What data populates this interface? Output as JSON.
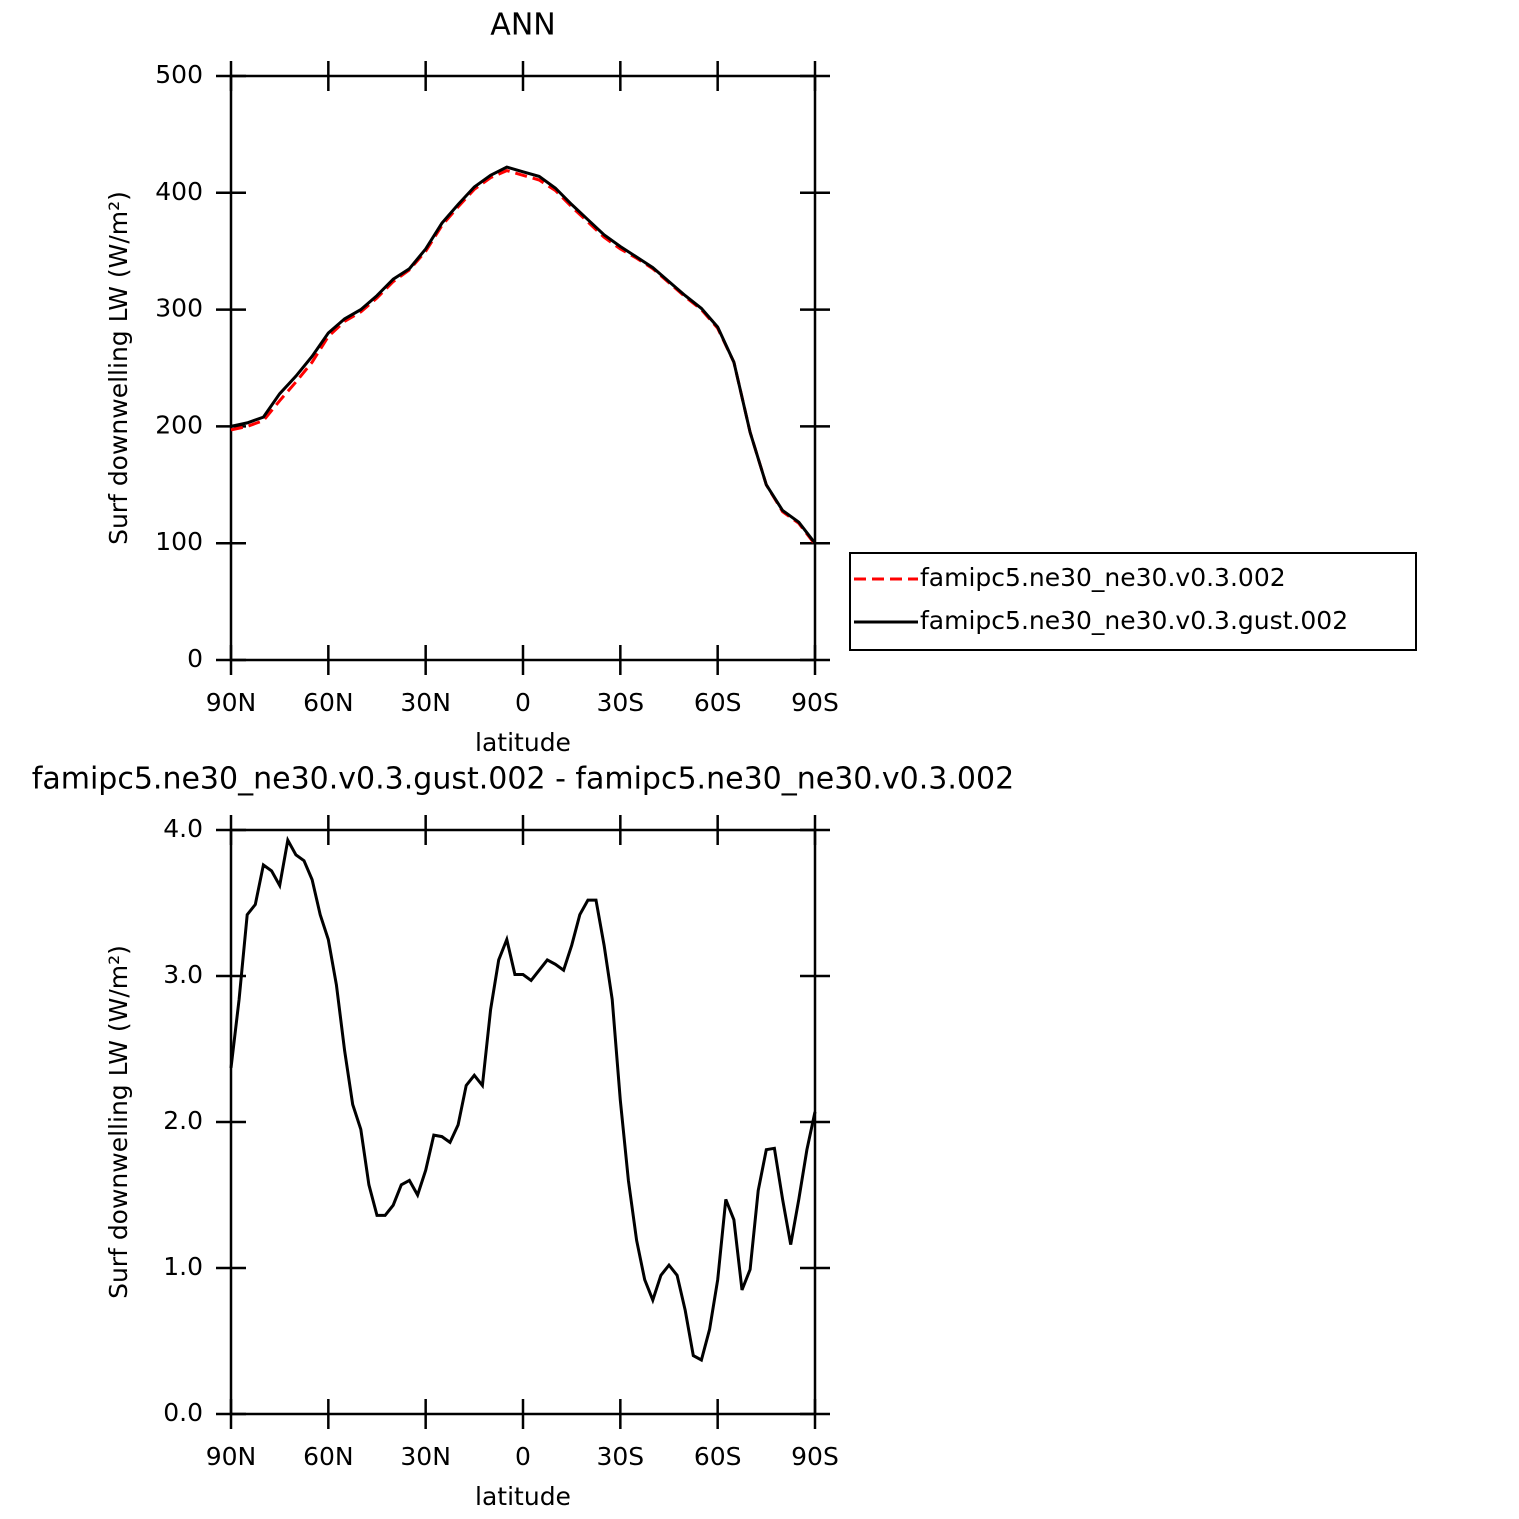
{
  "chart_data": [
    {
      "type": "line",
      "title": "ANN",
      "xlabel": "latitude",
      "ylabel": "Surf downwelling LW (W/m²)",
      "x": [
        90,
        85,
        80,
        75,
        70,
        65,
        60,
        55,
        50,
        45,
        40,
        35,
        30,
        25,
        20,
        15,
        10,
        5,
        0,
        -5,
        -10,
        -15,
        -20,
        -25,
        -30,
        -35,
        -40,
        -45,
        -50,
        -55,
        -60,
        -65,
        -70,
        -75,
        -80,
        -85,
        -90
      ],
      "xlim": [
        90,
        -90
      ],
      "xticks": [
        {
          "value": 90,
          "label": "90N"
        },
        {
          "value": 60,
          "label": "60N"
        },
        {
          "value": 30,
          "label": "30N"
        },
        0,
        {
          "value": -30,
          "label": "30S"
        },
        {
          "value": -60,
          "label": "60S"
        },
        {
          "value": -90,
          "label": "90S"
        }
      ],
      "ylim": [
        0,
        500
      ],
      "yticks": [
        0,
        100,
        200,
        300,
        400,
        500
      ],
      "legend": "right",
      "series": [
        {
          "name": "famipc5.ne30_ne30.v0.3.002",
          "color": "#ff0000",
          "linestyle": "dashed",
          "values": [
            197,
            200,
            205,
            222,
            238,
            255,
            277,
            290,
            298,
            310,
            324,
            334,
            350,
            372,
            388,
            403,
            413,
            419,
            415,
            411,
            402,
            388,
            375,
            362,
            352,
            344,
            335,
            323,
            311,
            300,
            284,
            255,
            195,
            150,
            127,
            117,
            99
          ]
        },
        {
          "name": "famipc5.ne30_ne30.v0.3.gust.002",
          "color": "#000000",
          "linestyle": "solid",
          "values": [
            200,
            203,
            208,
            228,
            243,
            260,
            280,
            292,
            300,
            312,
            326,
            335,
            352,
            374,
            390,
            405,
            415,
            422,
            418,
            414,
            404,
            390,
            377,
            364,
            354,
            345,
            336,
            324,
            312,
            301,
            285,
            255,
            195,
            150,
            128,
            118,
            100
          ]
        }
      ]
    },
    {
      "type": "line",
      "title": "famipc5.ne30_ne30.v0.3.gust.002 - famipc5.ne30_ne30.v0.3.002",
      "xlabel": "latitude",
      "ylabel": "Surf downwelling LW (W/m²)",
      "x": [
        90,
        87.5,
        85,
        82.5,
        80,
        77.5,
        75,
        72.5,
        70,
        67.5,
        65,
        62.5,
        60,
        57.5,
        55,
        52.5,
        50,
        47.5,
        45,
        42.5,
        40,
        37.5,
        35,
        32.5,
        30,
        27.5,
        25,
        22.5,
        20,
        17.5,
        15,
        12.5,
        10,
        7.5,
        5,
        2.5,
        0,
        -2.5,
        -5,
        -7.5,
        -10,
        -12.5,
        -15,
        -17.5,
        -20,
        -22.5,
        -25,
        -27.5,
        -30,
        -32.5,
        -35,
        -37.5,
        -40,
        -42.5,
        -45,
        -47.5,
        -50,
        -52.5,
        -55,
        -57.5,
        -60,
        -62.5,
        -65,
        -67.5,
        -70,
        -72.5,
        -75,
        -77.5,
        -80,
        -82.5,
        -85,
        -87.5,
        -90
      ],
      "xlim": [
        90,
        -90
      ],
      "xticks": [
        {
          "value": 90,
          "label": "90N"
        },
        {
          "value": 60,
          "label": "60N"
        },
        {
          "value": 30,
          "label": "30N"
        },
        0,
        {
          "value": -30,
          "label": "30S"
        },
        {
          "value": -60,
          "label": "60S"
        },
        {
          "value": -90,
          "label": "90S"
        }
      ],
      "ylim": [
        0,
        4
      ],
      "yticks": [
        {
          "value": 0,
          "label": "0.0"
        },
        {
          "value": 1,
          "label": "1.0"
        },
        {
          "value": 2,
          "label": "2.0"
        },
        {
          "value": 3,
          "label": "3.0"
        },
        {
          "value": 4,
          "label": "4.0"
        }
      ],
      "series": [
        {
          "color": "#000000",
          "linestyle": "solid",
          "values": [
            2.37,
            2.84,
            3.42,
            3.49,
            3.76,
            3.72,
            3.62,
            3.93,
            3.83,
            3.79,
            3.66,
            3.42,
            3.25,
            2.94,
            2.49,
            2.12,
            1.95,
            1.57,
            1.36,
            1.36,
            1.43,
            1.57,
            1.6,
            1.5,
            1.67,
            1.91,
            1.9,
            1.86,
            1.98,
            2.25,
            2.32,
            2.25,
            2.77,
            3.11,
            3.25,
            3.01,
            3.01,
            2.97,
            3.04,
            3.11,
            3.08,
            3.04,
            3.21,
            3.42,
            3.52,
            3.52,
            3.21,
            2.84,
            2.15,
            1.6,
            1.19,
            0.92,
            0.78,
            0.95,
            1.02,
            0.95,
            0.71,
            0.4,
            0.37,
            0.58,
            0.92,
            1.47,
            1.33,
            0.85,
            0.99,
            1.53,
            1.81,
            1.82,
            1.47,
            1.16,
            1.47,
            1.81,
            2.07
          ]
        }
      ]
    }
  ]
}
